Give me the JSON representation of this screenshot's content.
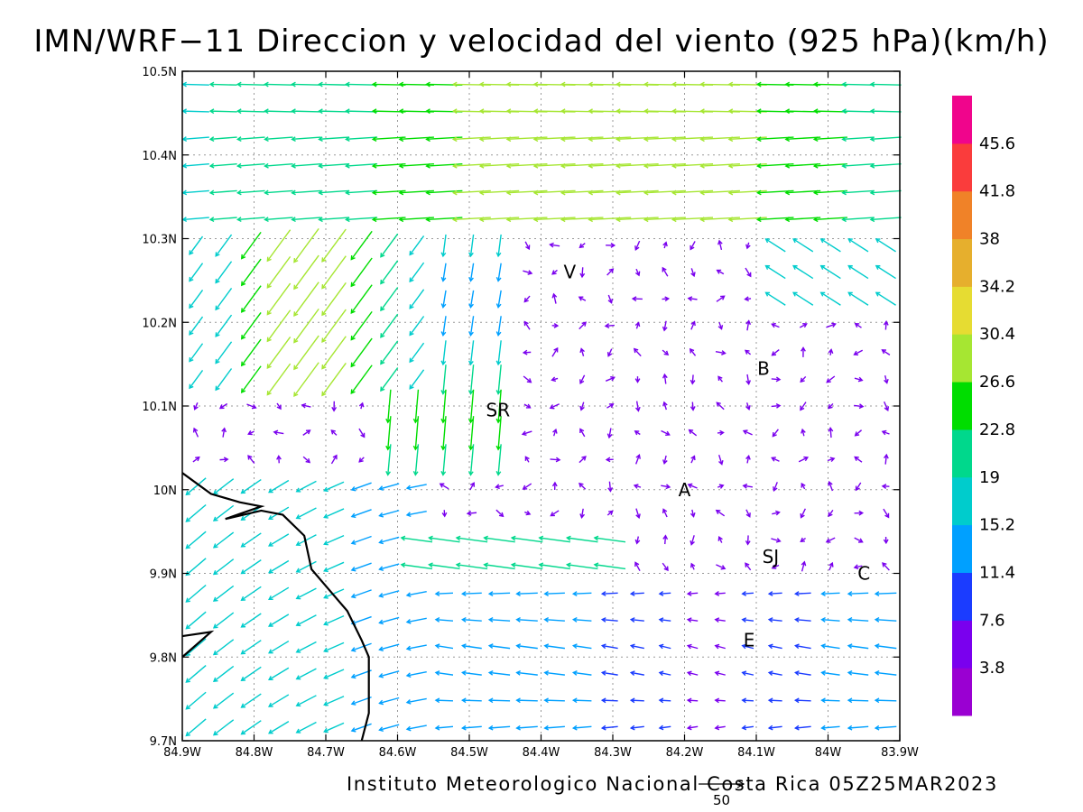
{
  "title": "IMN/WRF−11 Direccion y velocidad del viento (925 hPa)(km/h)",
  "footer": "Instituto Meteorologico Nacional Costa Rica 05Z25MAR2023",
  "reference_vector_label": "50",
  "chart_data": {
    "type": "vector",
    "title": "IMN/WRF−11 Direccion y velocidad del viento (925 hPa)(km/h)",
    "xlim": [
      -84.9,
      -83.9
    ],
    "ylim": [
      9.7,
      10.5
    ],
    "x_ticks": [
      {
        "value": -84.9,
        "label": "84.9W"
      },
      {
        "value": -84.8,
        "label": "84.8W"
      },
      {
        "value": -84.7,
        "label": "84.7W"
      },
      {
        "value": -84.6,
        "label": "84.6W"
      },
      {
        "value": -84.5,
        "label": "84.5W"
      },
      {
        "value": -84.4,
        "label": "84.4W"
      },
      {
        "value": -84.3,
        "label": "84.3W"
      },
      {
        "value": -84.2,
        "label": "84.2W"
      },
      {
        "value": -84.1,
        "label": "84.1W"
      },
      {
        "value": -84.0,
        "label": "84W"
      },
      {
        "value": -83.9,
        "label": "83.9W"
      }
    ],
    "y_ticks": [
      {
        "value": 9.7,
        "label": "9.7N"
      },
      {
        "value": 9.8,
        "label": "9.8N"
      },
      {
        "value": 9.9,
        "label": "9.9N"
      },
      {
        "value": 10.0,
        "label": "10N"
      },
      {
        "value": 10.1,
        "label": "10.1N"
      },
      {
        "value": 10.2,
        "label": "10.2N"
      },
      {
        "value": 10.3,
        "label": "10.3N"
      },
      {
        "value": 10.4,
        "label": "10.4N"
      },
      {
        "value": 10.5,
        "label": "10.5N"
      }
    ],
    "grid": true,
    "colorbar": {
      "labels": [
        "3.8",
        "7.6",
        "11.4",
        "15.2",
        "19",
        "22.8",
        "26.6",
        "30.4",
        "34.2",
        "38",
        "41.8",
        "45.6"
      ],
      "colors": [
        "#9a00d2",
        "#7a00ee",
        "#1b3cff",
        "#00a0ff",
        "#00cccc",
        "#00d88c",
        "#00dd00",
        "#a6e632",
        "#e6dc32",
        "#e6af2d",
        "#f08228",
        "#fa3c3c",
        "#f0058c"
      ]
    },
    "station_labels": [
      {
        "text": "V",
        "lon": -84.36,
        "lat": 10.26
      },
      {
        "text": "SR",
        "lon": -84.46,
        "lat": 10.095
      },
      {
        "text": "B",
        "lon": -84.09,
        "lat": 10.145
      },
      {
        "text": "A",
        "lon": -84.2,
        "lat": 10.0
      },
      {
        "text": "SJ",
        "lon": -84.08,
        "lat": 9.92
      },
      {
        "text": "C",
        "lon": -83.95,
        "lat": 9.9
      },
      {
        "text": "E",
        "lon": -84.11,
        "lat": 9.82
      }
    ],
    "coastline": [
      [
        -84.9,
        10.02
      ],
      [
        -84.86,
        9.995
      ],
      [
        -84.82,
        9.985
      ],
      [
        -84.79,
        9.98
      ],
      [
        -84.84,
        9.965
      ],
      [
        -84.79,
        9.975
      ],
      [
        -84.76,
        9.97
      ],
      [
        -84.73,
        9.945
      ],
      [
        -84.72,
        9.905
      ],
      [
        -84.7,
        9.885
      ],
      [
        -84.67,
        9.855
      ],
      [
        -84.65,
        9.82
      ],
      [
        -84.64,
        9.8
      ],
      [
        -84.64,
        9.733
      ],
      [
        -84.65,
        9.7
      ]
    ],
    "coastline2": [
      [
        -84.9,
        9.825
      ],
      [
        -84.86,
        9.83
      ],
      [
        -84.9,
        9.8
      ]
    ]
  }
}
